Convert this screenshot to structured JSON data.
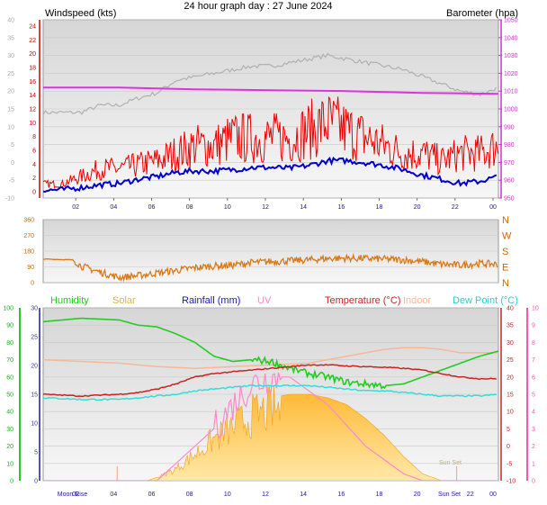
{
  "title": "24 hour graph day : 27 June 2024",
  "colors": {
    "wind": "#ee0000",
    "gust_line": "#0000cc",
    "baro": "#dd33dd",
    "baro_label": "#cc33cc",
    "gray": "#aaaaaa",
    "dir": "#d97a1a",
    "humidity": "#22cc22",
    "solar": "#ffb830",
    "rain": "#1a1aaa",
    "uv": "#ff88cc",
    "temp": "#cc2222",
    "indoor": "#f5b89a",
    "dew": "#33dddd",
    "rain_axis": "#3a3aaa",
    "uv_axis": "#ff55aa"
  },
  "chart_data": [
    {
      "type": "line",
      "name": "wind-baro",
      "x_ticks": [
        "02",
        "04",
        "06",
        "08",
        "10",
        "12",
        "14",
        "16",
        "18",
        "20",
        "22",
        "00"
      ],
      "left_label": "Windspeed (kts)",
      "right_label": "Barometer (hpa)",
      "left_red_ticks": [
        "24",
        "22",
        "20",
        "18",
        "16",
        "14",
        "12",
        "10",
        "8",
        "6",
        "4",
        "2",
        "0"
      ],
      "left_gray_ticks": [
        "40",
        "35",
        "30",
        "25",
        "20",
        "15",
        "10",
        "5",
        "0",
        "-5",
        "-10"
      ],
      "right_ticks": [
        "1050",
        "1040",
        "1030",
        "1020",
        "1010",
        "1000",
        "990",
        "980",
        "970",
        "960",
        "950"
      ],
      "ylim_wind": [
        0,
        24
      ],
      "ylim_gray": [
        -10,
        40
      ],
      "ylim_baro": [
        950,
        1050
      ],
      "wind_red": [
        [
          0,
          1
        ],
        [
          1,
          1
        ],
        [
          2,
          2
        ],
        [
          3,
          3
        ],
        [
          4,
          3
        ],
        [
          5,
          3.5
        ],
        [
          6,
          4
        ],
        [
          7,
          5
        ],
        [
          8,
          6
        ],
        [
          9,
          6
        ],
        [
          10,
          7
        ],
        [
          11,
          7
        ],
        [
          12,
          7
        ],
        [
          13,
          7
        ],
        [
          14,
          8
        ],
        [
          15,
          9
        ],
        [
          16,
          8
        ],
        [
          17,
          7
        ],
        [
          18,
          6
        ],
        [
          19,
          5
        ],
        [
          20,
          5
        ],
        [
          21,
          4
        ],
        [
          22,
          5
        ],
        [
          23,
          5
        ],
        [
          24,
          6
        ]
      ],
      "wind_blue": [
        [
          0,
          0.2
        ],
        [
          1,
          0.3
        ],
        [
          2,
          0.6
        ],
        [
          3,
          1
        ],
        [
          4,
          1.2
        ],
        [
          5,
          1.8
        ],
        [
          6,
          2.2
        ],
        [
          7,
          2.8
        ],
        [
          8,
          3
        ],
        [
          9,
          3
        ],
        [
          10,
          3.2
        ],
        [
          11,
          3.5
        ],
        [
          12,
          3.5
        ],
        [
          13,
          3.4
        ],
        [
          14,
          3.8
        ],
        [
          15,
          4.5
        ],
        [
          16,
          4.5
        ],
        [
          17,
          4.2
        ],
        [
          18,
          3.8
        ],
        [
          19,
          3.2
        ],
        [
          20,
          2.4
        ],
        [
          21,
          1.8
        ],
        [
          22,
          1.2
        ],
        [
          23,
          1.5
        ],
        [
          24,
          2.2
        ]
      ],
      "temp_gray": [
        [
          0,
          14
        ],
        [
          2,
          14
        ],
        [
          3,
          16
        ],
        [
          4,
          16
        ],
        [
          5,
          18
        ],
        [
          6,
          19.5
        ],
        [
          7,
          23
        ],
        [
          8,
          24
        ],
        [
          9,
          25
        ],
        [
          10,
          26
        ],
        [
          11,
          27
        ],
        [
          12,
          27
        ],
        [
          13,
          28
        ],
        [
          14,
          29
        ],
        [
          15,
          30
        ],
        [
          16,
          29
        ],
        [
          17,
          28
        ],
        [
          18,
          27
        ],
        [
          19,
          26
        ],
        [
          20,
          24
        ],
        [
          21,
          22
        ],
        [
          22,
          20
        ],
        [
          23,
          19
        ],
        [
          24,
          21
        ]
      ],
      "baro": [
        [
          0,
          1012
        ],
        [
          4,
          1012
        ],
        [
          8,
          1011
        ],
        [
          12,
          1010.5
        ],
        [
          16,
          1010
        ],
        [
          20,
          1009
        ],
        [
          24,
          1008.5
        ]
      ]
    },
    {
      "type": "line",
      "name": "wind-direction",
      "x_ticks": [
        "02",
        "04",
        "06",
        "08",
        "10",
        "12",
        "14",
        "16",
        "18",
        "20",
        "22",
        "00"
      ],
      "left_ticks": [
        "360",
        "270",
        "180",
        "90",
        "0"
      ],
      "right_ticks": [
        "N",
        "W",
        "S",
        "E",
        "N"
      ],
      "ylim": [
        0,
        360
      ],
      "direction": [
        [
          0,
          135
        ],
        [
          1.6,
          130
        ],
        [
          2,
          95
        ],
        [
          3,
          60
        ],
        [
          4,
          30
        ],
        [
          5,
          40
        ],
        [
          6,
          55
        ],
        [
          7,
          70
        ],
        [
          8,
          85
        ],
        [
          9,
          95
        ],
        [
          10,
          100
        ],
        [
          11,
          115
        ],
        [
          12,
          120
        ],
        [
          13,
          125
        ],
        [
          14,
          130
        ],
        [
          15,
          138
        ],
        [
          16,
          140
        ],
        [
          17,
          138
        ],
        [
          18,
          135
        ],
        [
          19,
          130
        ],
        [
          20,
          120
        ],
        [
          21,
          105
        ],
        [
          22,
          100
        ],
        [
          23,
          110
        ],
        [
          24,
          105
        ]
      ]
    },
    {
      "type": "line",
      "name": "humidity-temp-solar",
      "x_ticks": [
        "Moon Rise",
        "02",
        "04",
        "06",
        "08",
        "10",
        "12",
        "14",
        "16",
        "18",
        "20",
        "Sun Set",
        "22",
        "00"
      ],
      "legend": [
        "Humidity",
        "Solar",
        "Rainfall (mm)",
        "UV",
        "Temperature (°C)",
        "Indoor",
        "Dew Point (°C)"
      ],
      "humidity_ticks": [
        "100",
        "90",
        "80",
        "70",
        "60",
        "50",
        "40",
        "30",
        "20",
        "10",
        "0"
      ],
      "rain_ticks": [
        "30",
        "25",
        "20",
        "15",
        "10",
        "5",
        "0"
      ],
      "temp_ticks": [
        "40",
        "35",
        "30",
        "25",
        "20",
        "15",
        "10",
        "5",
        "0",
        "-5",
        "-10"
      ],
      "uv_ticks": [
        "10",
        "9",
        "8",
        "7",
        "6",
        "5",
        "4",
        "3",
        "2",
        "1",
        "0"
      ],
      "annotation": "Sun Set",
      "ylim_humidity": [
        0,
        100
      ],
      "ylim_temp": [
        -10,
        40
      ],
      "humidity": [
        [
          0,
          92
        ],
        [
          2,
          94
        ],
        [
          4,
          93
        ],
        [
          5,
          90
        ],
        [
          6,
          89
        ],
        [
          7,
          85
        ],
        [
          8,
          80
        ],
        [
          9,
          72
        ],
        [
          10,
          69
        ],
        [
          11,
          70
        ],
        [
          12,
          69
        ],
        [
          13,
          65
        ],
        [
          14,
          62
        ],
        [
          15,
          60
        ],
        [
          16,
          57
        ],
        [
          17,
          56
        ],
        [
          18,
          55
        ],
        [
          19,
          56
        ],
        [
          20,
          60
        ],
        [
          21,
          64
        ],
        [
          22,
          68
        ],
        [
          23,
          72
        ],
        [
          24,
          75
        ]
      ],
      "temperature": [
        [
          0,
          15
        ],
        [
          2,
          14.5
        ],
        [
          4,
          15
        ],
        [
          5,
          15.5
        ],
        [
          6,
          16.5
        ],
        [
          7,
          18
        ],
        [
          8,
          20
        ],
        [
          9,
          21
        ],
        [
          10,
          21.5
        ],
        [
          11,
          22
        ],
        [
          12,
          22.5
        ],
        [
          13,
          23
        ],
        [
          14,
          23.5
        ],
        [
          15,
          23.5
        ],
        [
          16,
          23.2
        ],
        [
          17,
          23
        ],
        [
          18,
          22.8
        ],
        [
          19,
          22.5
        ],
        [
          20,
          22
        ],
        [
          21,
          21
        ],
        [
          22,
          20
        ],
        [
          23,
          19.5
        ],
        [
          24,
          19.5
        ]
      ],
      "indoor": [
        [
          0,
          25
        ],
        [
          2,
          24.5
        ],
        [
          4,
          24
        ],
        [
          6,
          23
        ],
        [
          8,
          22.5
        ],
        [
          10,
          23
        ],
        [
          12,
          23.5
        ],
        [
          14,
          24
        ],
        [
          16,
          26
        ],
        [
          18,
          28
        ],
        [
          19,
          28.5
        ],
        [
          20,
          28.5
        ],
        [
          21,
          28
        ],
        [
          22,
          27
        ],
        [
          24,
          27
        ]
      ],
      "dew_point": [
        [
          0,
          14
        ],
        [
          2,
          13.5
        ],
        [
          4,
          13.5
        ],
        [
          5,
          14
        ],
        [
          6,
          14.5
        ],
        [
          7,
          15
        ],
        [
          8,
          16
        ],
        [
          9,
          16.5
        ],
        [
          10,
          17
        ],
        [
          11,
          17.5
        ],
        [
          12,
          17.5
        ],
        [
          13,
          17.5
        ],
        [
          14,
          17.5
        ],
        [
          15,
          17
        ],
        [
          16,
          16.5
        ],
        [
          17,
          16
        ],
        [
          18,
          16
        ],
        [
          19,
          15.5
        ],
        [
          20,
          15
        ],
        [
          21,
          14.5
        ],
        [
          22,
          14.5
        ],
        [
          23,
          14.5
        ],
        [
          24,
          15
        ]
      ],
      "solar": [
        [
          0,
          0
        ],
        [
          4,
          0
        ],
        [
          5.5,
          0
        ],
        [
          6,
          2
        ],
        [
          7,
          8
        ],
        [
          8,
          18
        ],
        [
          9,
          28
        ],
        [
          10,
          36
        ],
        [
          11,
          44
        ],
        [
          12,
          48
        ],
        [
          13,
          50
        ],
        [
          14,
          50
        ],
        [
          15,
          48
        ],
        [
          16,
          44
        ],
        [
          17,
          36
        ],
        [
          18,
          26
        ],
        [
          19,
          14
        ],
        [
          20,
          4
        ],
        [
          21,
          0
        ],
        [
          24,
          0
        ]
      ],
      "uv": [
        [
          0,
          -10
        ],
        [
          6,
          -10
        ],
        [
          7,
          -5
        ],
        [
          8,
          0
        ],
        [
          9,
          5
        ],
        [
          10,
          12
        ],
        [
          11,
          18
        ],
        [
          12,
          20
        ],
        [
          13,
          20
        ],
        [
          14,
          16
        ],
        [
          15,
          12
        ],
        [
          16,
          6
        ],
        [
          17,
          0
        ],
        [
          18,
          -4
        ],
        [
          19,
          -8
        ],
        [
          20,
          -10
        ],
        [
          24,
          -10
        ]
      ]
    }
  ]
}
